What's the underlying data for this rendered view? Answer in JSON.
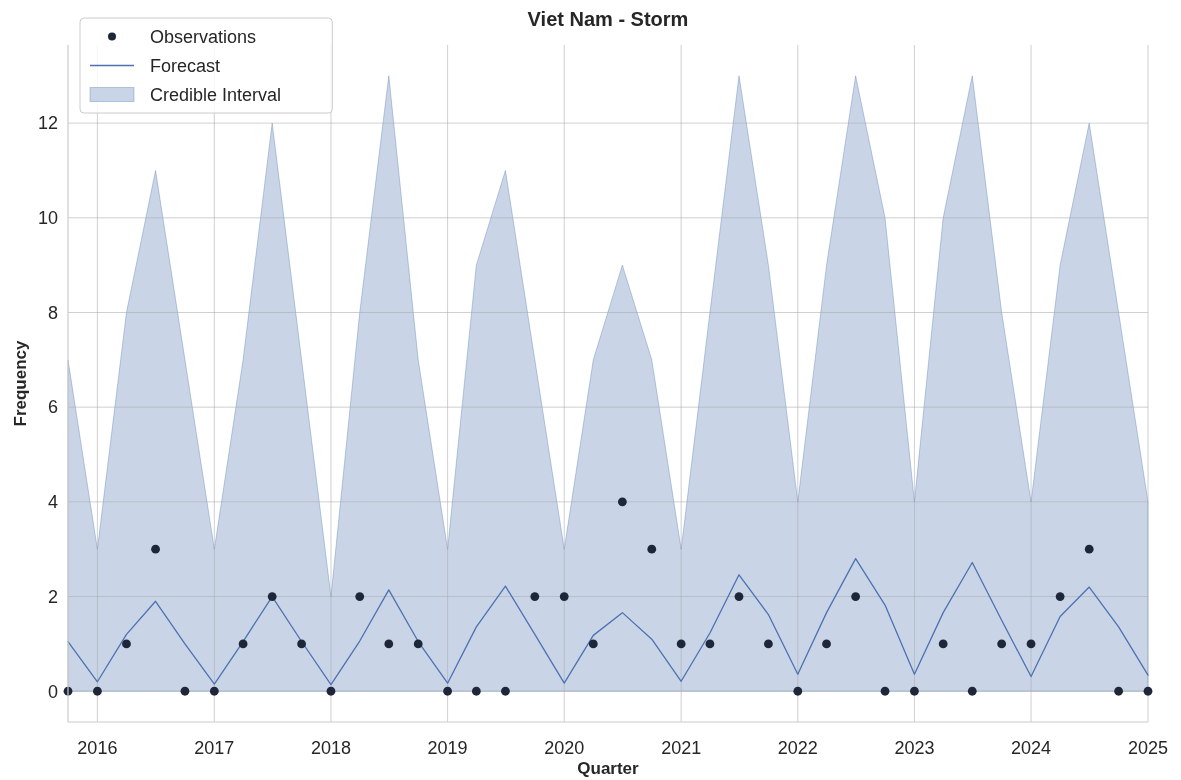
{
  "chart_data": {
    "type": "line",
    "title": "Viet Nam - Storm",
    "xlabel": "Quarter",
    "ylabel": "Frequency",
    "x": [
      "2015-10",
      "2016-01",
      "2016-04",
      "2016-07",
      "2016-10",
      "2017-01",
      "2017-04",
      "2017-07",
      "2017-10",
      "2018-01",
      "2018-04",
      "2018-07",
      "2018-10",
      "2019-01",
      "2019-04",
      "2019-07",
      "2019-10",
      "2020-01",
      "2020-04",
      "2020-07",
      "2020-10",
      "2021-01",
      "2021-04",
      "2021-07",
      "2021-10",
      "2022-01",
      "2022-04",
      "2022-07",
      "2022-10",
      "2023-01",
      "2023-04",
      "2023-07",
      "2023-10",
      "2024-01",
      "2024-04",
      "2024-07",
      "2024-10",
      "2025-01"
    ],
    "series": [
      {
        "name": "Observations",
        "type": "scatter",
        "marker": "circle",
        "color": "#1e2739",
        "values": [
          0,
          0,
          1,
          3,
          0,
          0,
          1,
          2,
          1,
          0,
          2,
          1,
          1,
          0,
          0,
          0,
          2,
          2,
          1,
          4,
          3,
          1,
          1,
          2,
          1,
          0,
          1,
          2,
          0,
          0,
          1,
          0,
          1,
          1,
          2,
          3,
          0,
          0
        ]
      },
      {
        "name": "Forecast",
        "type": "line",
        "color": "#4c72b0",
        "values": [
          1.05,
          0.2,
          1.2,
          1.9,
          1.0,
          0.15,
          1.05,
          2.0,
          1.05,
          0.14,
          1.06,
          2.14,
          1.05,
          0.17,
          1.36,
          2.22,
          1.2,
          0.17,
          1.18,
          1.66,
          1.1,
          0.21,
          1.23,
          2.46,
          1.62,
          0.36,
          1.66,
          2.8,
          1.82,
          0.36,
          1.66,
          2.72,
          1.5,
          0.31,
          1.58,
          2.2,
          1.36,
          0.34
        ]
      },
      {
        "name": "Credible Interval",
        "type": "area",
        "color": "#c9d5e7",
        "values": [
          7,
          3,
          8,
          11,
          7,
          3,
          7,
          12,
          7,
          2,
          8,
          13,
          7,
          3,
          9,
          11,
          7,
          3,
          7,
          9,
          7,
          3,
          8,
          13,
          9,
          4,
          9,
          13,
          10,
          4,
          10,
          13,
          8,
          4,
          9,
          12,
          8,
          4
        ]
      }
    ],
    "xlim": [
      "2015-10",
      "2025-01"
    ],
    "xticks": [
      "2016",
      "2017",
      "2018",
      "2019",
      "2020",
      "2021",
      "2022",
      "2023",
      "2024",
      "2025"
    ],
    "ylim": [
      -0.65,
      13.65
    ],
    "yticks": [
      0,
      2,
      4,
      6,
      8,
      10,
      12
    ],
    "grid": true,
    "legend": "top left"
  }
}
